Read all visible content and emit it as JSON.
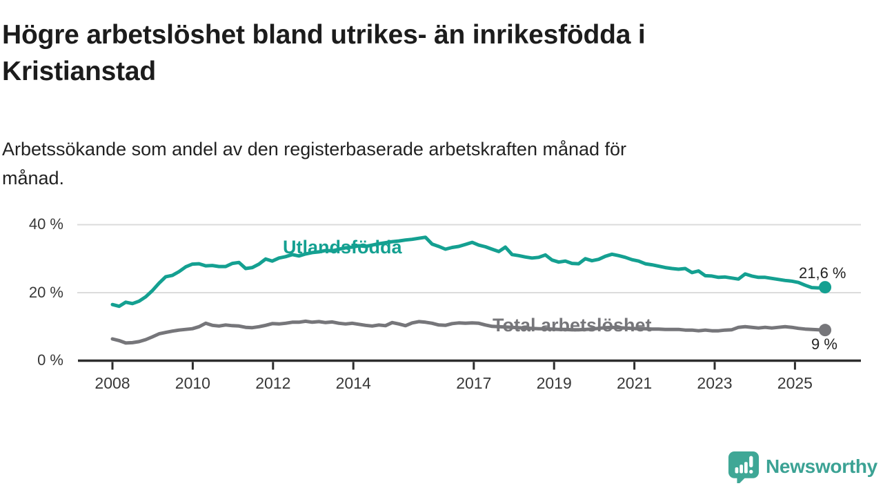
{
  "header": {
    "title_lines": [
      "Högre arbetslöshet bland utrikes- än inrikesfödda i",
      "Kristianstad"
    ],
    "subtitle_lines": [
      "Arbetssökande som andel av den registerbaserade arbetskraften månad för",
      "månad."
    ]
  },
  "footer": {
    "brand_name": "Newsworthy",
    "logo_icon": "bar-chart-speech-bubble-icon"
  },
  "colors": {
    "foreign_born_line": "#14A091",
    "total_line": "#76767A",
    "grid": "#DBDBDB",
    "axis": "#2D2D2D",
    "tick_text": "#383838",
    "annotation_text": "#222222",
    "title_text": "#1C1C1C",
    "brand_teal": "#3BA294"
  },
  "chart_data": {
    "type": "line",
    "x_axis": {
      "ticks": [
        2008,
        2010,
        2012,
        2014,
        2017,
        2019,
        2021,
        2023,
        2025
      ],
      "tick_labels": [
        "2008",
        "2010",
        "2012",
        "2014",
        "2017",
        "2019",
        "2021",
        "2023",
        "2025"
      ],
      "range": [
        2007.1,
        2026.6
      ]
    },
    "y_axis": {
      "unit": "%",
      "ticks": [
        40,
        20,
        0
      ],
      "tick_labels": [
        "40 %",
        "20 %",
        "0 %"
      ],
      "range": [
        0,
        44
      ],
      "grid": true
    },
    "legend_position": "inline-labels",
    "series": [
      {
        "name": "Utlandsfödda",
        "end_label": "21,6 %",
        "end_value": 21.6,
        "color": "#14A091",
        "x_start": 2008.0,
        "x_end": 2025.75,
        "values": [
          16.5,
          16.0,
          17.2,
          16.8,
          17.5,
          18.8,
          20.6,
          22.8,
          24.7,
          25.1,
          26.2,
          27.6,
          28.4,
          28.5,
          27.9,
          28.0,
          27.7,
          27.7,
          28.6,
          28.9,
          27.1,
          27.4,
          28.4,
          29.9,
          29.3,
          30.2,
          30.6,
          31.2,
          30.8,
          31.4,
          31.8,
          32.0,
          32.4,
          32.3,
          32.8,
          33.2,
          33.4,
          33.8,
          33.6,
          34.0,
          34.4,
          34.7,
          35.0,
          35.2,
          35.5,
          35.7,
          36.0,
          36.3,
          34.3,
          33.6,
          32.8,
          33.3,
          33.6,
          34.2,
          34.8,
          34.0,
          33.5,
          32.8,
          32.1,
          33.4,
          31.2,
          30.9,
          30.5,
          30.2,
          30.4,
          31.1,
          29.6,
          29.0,
          29.3,
          28.6,
          28.5,
          30.0,
          29.4,
          29.8,
          30.7,
          31.3,
          30.9,
          30.4,
          29.7,
          29.3,
          28.5,
          28.2,
          27.8,
          27.4,
          27.1,
          26.9,
          27.1,
          25.9,
          26.4,
          25.0,
          24.9,
          24.5,
          24.6,
          24.3,
          24.0,
          25.5,
          24.9,
          24.5,
          24.5,
          24.2,
          23.9,
          23.6,
          23.4,
          23.0,
          22.2,
          21.5,
          21.4,
          21.6
        ]
      },
      {
        "name": "Total arbetslöshet",
        "end_label": "9 %",
        "end_value": 9.0,
        "color": "#76767A",
        "x_start": 2008.0,
        "x_end": 2025.75,
        "values": [
          6.4,
          5.9,
          5.2,
          5.3,
          5.6,
          6.2,
          7.0,
          7.9,
          8.3,
          8.7,
          9.0,
          9.2,
          9.4,
          10.0,
          11.0,
          10.4,
          10.2,
          10.5,
          10.3,
          10.2,
          9.8,
          9.7,
          10.0,
          10.4,
          10.9,
          10.8,
          11.0,
          11.3,
          11.3,
          11.6,
          11.3,
          11.5,
          11.2,
          11.4,
          11.0,
          10.8,
          11.0,
          10.7,
          10.4,
          10.2,
          10.5,
          10.3,
          11.2,
          10.8,
          10.3,
          11.1,
          11.5,
          11.3,
          11.0,
          10.5,
          10.4,
          10.9,
          11.1,
          11.0,
          11.1,
          11.0,
          10.5,
          10.1,
          10.0,
          9.9,
          9.8,
          9.7,
          9.6,
          9.5,
          9.4,
          9.4,
          9.3,
          9.2,
          9.2,
          9.1,
          9.1,
          9.2,
          9.3,
          9.5,
          9.7,
          9.8,
          9.7,
          9.6,
          9.5,
          9.4,
          9.4,
          9.3,
          9.3,
          9.2,
          9.2,
          9.2,
          9.0,
          9.0,
          8.8,
          9.0,
          8.8,
          8.8,
          9.0,
          9.1,
          9.8,
          10.0,
          9.8,
          9.6,
          9.8,
          9.6,
          9.8,
          10.0,
          9.8,
          9.5,
          9.3,
          9.2,
          9.1,
          9.0
        ]
      }
    ]
  }
}
